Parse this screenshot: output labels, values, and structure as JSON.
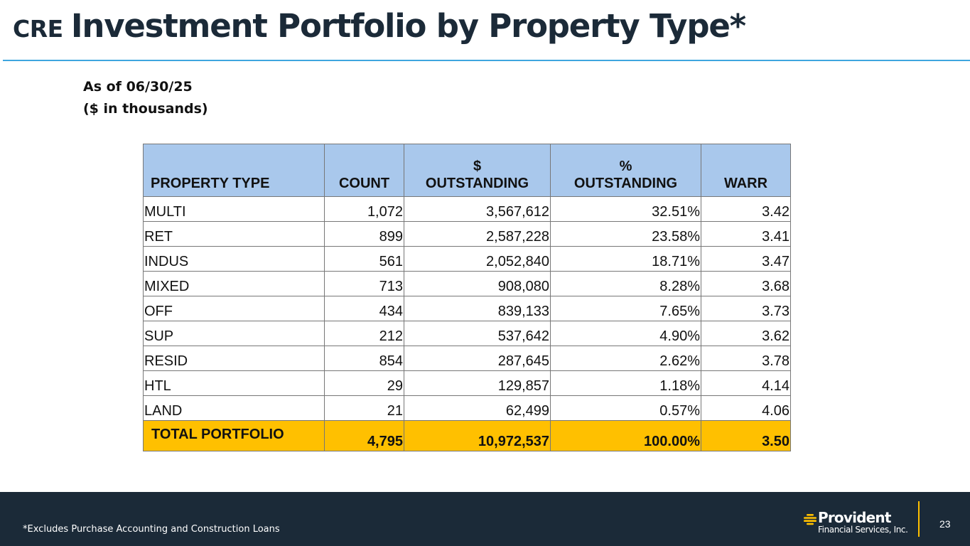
{
  "title": {
    "prefix": "CRE",
    "main": "Investment Portfolio by Property Type*"
  },
  "subheader": {
    "as_of": "As of 06/30/25",
    "units": "($ in thousands)"
  },
  "table": {
    "headers": {
      "property_type": "PROPERTY TYPE",
      "count": "COUNT",
      "dollar_line1": "$",
      "dollar_line2": "OUTSTANDING",
      "pct_line1": "%",
      "pct_line2": "OUTSTANDING",
      "warr": "WARR"
    },
    "rows": [
      {
        "type": "MULTI",
        "count": "1,072",
        "outstanding": "3,567,612",
        "pct": "32.51%",
        "warr": "3.42"
      },
      {
        "type": "RET",
        "count": "899",
        "outstanding": "2,587,228",
        "pct": "23.58%",
        "warr": "3.41"
      },
      {
        "type": "INDUS",
        "count": "561",
        "outstanding": "2,052,840",
        "pct": "18.71%",
        "warr": "3.47"
      },
      {
        "type": "MIXED",
        "count": "713",
        "outstanding": "908,080",
        "pct": "8.28%",
        "warr": "3.68"
      },
      {
        "type": "OFF",
        "count": "434",
        "outstanding": "839,133",
        "pct": "7.65%",
        "warr": "3.73"
      },
      {
        "type": "SUP",
        "count": "212",
        "outstanding": "537,642",
        "pct": "4.90%",
        "warr": "3.62"
      },
      {
        "type": "RESID",
        "count": "854",
        "outstanding": "287,645",
        "pct": "2.62%",
        "warr": "3.78"
      },
      {
        "type": "HTL",
        "count": "29",
        "outstanding": "129,857",
        "pct": "1.18%",
        "warr": "4.14"
      },
      {
        "type": "LAND",
        "count": "21",
        "outstanding": "62,499",
        "pct": "0.57%",
        "warr": "4.06"
      }
    ],
    "total": {
      "type": "TOTAL PORTFOLIO",
      "count": "4,795",
      "outstanding": "10,972,537",
      "pct": "100.00%",
      "warr": "3.50"
    }
  },
  "footer": {
    "footnote": "*Excludes Purchase Accounting and Construction Loans",
    "logo_name": "Provident",
    "logo_sub": "Financial Services, Inc.",
    "page_number": "23"
  },
  "colors": {
    "header_fill": "#a9c8ec",
    "total_fill": "#ffc000",
    "footer_bg": "#1b2a38",
    "rule": "#3ea6df"
  },
  "icons": {
    "logo": "provident-logo-icon"
  }
}
